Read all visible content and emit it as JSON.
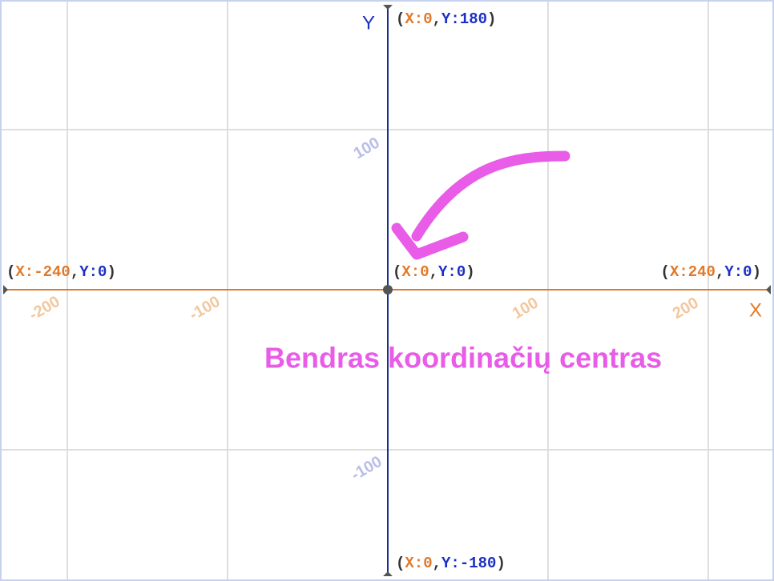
{
  "axes": {
    "x": {
      "label": "X",
      "ticks": [
        -200,
        -100,
        100,
        200
      ]
    },
    "y": {
      "label": "Y",
      "ticks": [
        100,
        -100
      ]
    }
  },
  "coordinate_labels": [
    {
      "parts": [
        "(",
        "X:0",
        ",",
        "Y:180",
        ")"
      ]
    },
    {
      "parts": [
        "(",
        "X:-240",
        ",",
        "Y:0",
        ")"
      ]
    },
    {
      "parts": [
        "(",
        "X:0",
        ",",
        "Y:0",
        ")"
      ]
    },
    {
      "parts": [
        "(",
        "X:240",
        ",",
        "Y:0",
        ")"
      ]
    },
    {
      "parts": [
        "(",
        "X:0",
        ",",
        "Y:-180",
        ")"
      ]
    }
  ],
  "annotation": "Bendras koordinačių centras"
}
